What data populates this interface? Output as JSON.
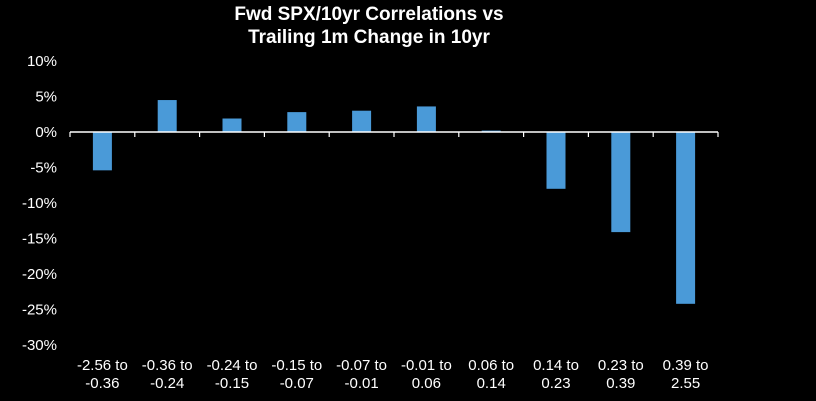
{
  "chart_data": {
    "type": "bar",
    "title_lines": [
      "Fwd SPX/10yr Correlations vs",
      "Trailing 1m Change in 10yr"
    ],
    "categories": [
      [
        "-2.56 to",
        "-0.36"
      ],
      [
        "-0.36 to",
        "-0.24"
      ],
      [
        "-0.24 to",
        "-0.15"
      ],
      [
        "-0.15 to",
        "-0.07"
      ],
      [
        "-0.07 to",
        "-0.01"
      ],
      [
        "-0.01 to",
        "0.06"
      ],
      [
        "0.06 to",
        "0.14"
      ],
      [
        "0.14 to",
        "0.23"
      ],
      [
        "0.23 to",
        "0.39"
      ],
      [
        "0.39 to",
        "2.55"
      ]
    ],
    "values": [
      -5.4,
      4.5,
      1.9,
      2.8,
      3.0,
      3.6,
      0.2,
      -8.0,
      -14.1,
      -24.2
    ],
    "ylim": [
      -30,
      10
    ],
    "yticks": [
      10,
      5,
      0,
      -5,
      -10,
      -15,
      -20,
      -25,
      -30
    ],
    "ytick_labels": [
      "10%",
      "5%",
      "0%",
      "-5%",
      "-10%",
      "-15%",
      "-20%",
      "-25%",
      "-30%"
    ],
    "xlabel": "",
    "ylabel": "",
    "grid": false,
    "legend": "none",
    "bar_color": "#4a9ad8",
    "background": "#000000",
    "text_color": "#ffffff"
  }
}
